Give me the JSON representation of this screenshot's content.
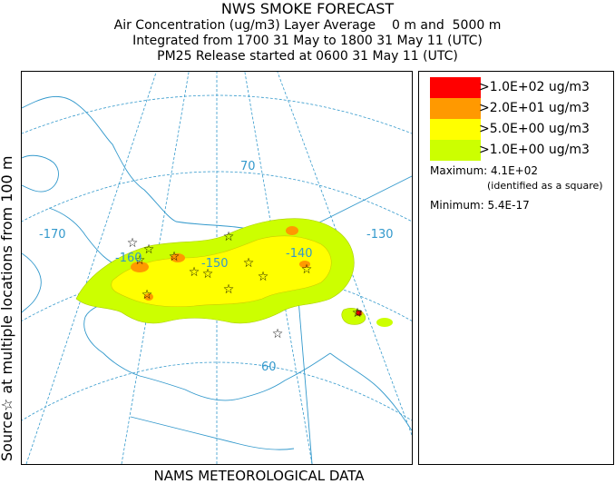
{
  "title": {
    "line1": "NWS SMOKE FORECAST",
    "line2": "Air Concentration (ug/m3) Layer Average    0 m and  5000 m",
    "line3": "Integrated from 1700 31 May to 1800 31 May 11 (UTC)",
    "line4": "PM25 Release started at 0600 31 May 11 (UTC)"
  },
  "side_label": {
    "source_text": "Source☆ at multiple locations  from   100 m"
  },
  "bottom_label": "NAMS METEOROLOGICAL DATA",
  "legend": {
    "items": [
      {
        "label": ">1.0E+02 ug/m3",
        "color": "#ff0000"
      },
      {
        "label": ">2.0E+01 ug/m3",
        "color": "#ff9900"
      },
      {
        "label": ">5.0E+00 ug/m3",
        "color": "#ffff00"
      },
      {
        "label": ">1.0E+00 ug/m3",
        "color": "#ccff00"
      }
    ],
    "maximum": "Maximum: 4.1E+02",
    "maximum_note": "(identified as a square)",
    "minimum": "Minimum: 5.4E-17"
  },
  "map": {
    "graticule_labels": {
      "lat70": "70",
      "lat60": "60",
      "lon170": "-170",
      "lon160": "-160",
      "lon150": "-150",
      "lon140": "-140",
      "lon130": "-130"
    },
    "graticule_color": "#3399cc",
    "coast_color": "#3399cc",
    "border_color": "#3399cc"
  }
}
